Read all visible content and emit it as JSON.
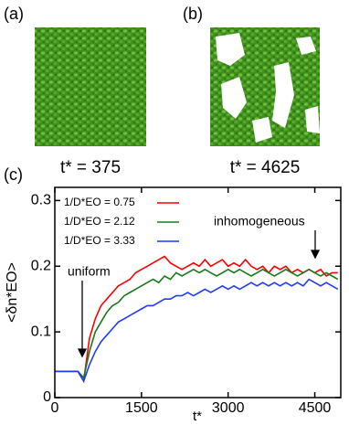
{
  "panels": [
    {
      "label": "(a)",
      "caption": "t* = 375"
    },
    {
      "label": "(b)",
      "caption": "t* = 4625"
    }
  ],
  "chart_data": {
    "type": "line",
    "panel_label": "(c)",
    "x_label": "t*",
    "y_label": "<δn*EO>",
    "annotations": [
      "uniform",
      "inhomogeneous"
    ],
    "xlim": [
      0,
      4950
    ],
    "ylim": [
      0,
      0.32
    ],
    "xticks": [
      0,
      1500,
      3000,
      4500
    ],
    "yticks": [
      0,
      0.1,
      0.2,
      0.3
    ],
    "x": [
      0,
      100,
      200,
      300,
      400,
      500,
      600,
      700,
      800,
      900,
      1000,
      1100,
      1200,
      1300,
      1400,
      1500,
      1600,
      1700,
      1800,
      1900,
      2000,
      2100,
      2200,
      2300,
      2400,
      2500,
      2600,
      2700,
      2800,
      2900,
      3000,
      3100,
      3200,
      3300,
      3400,
      3500,
      3600,
      3700,
      3800,
      3900,
      4000,
      4100,
      4200,
      4300,
      4400,
      4500,
      4600,
      4700,
      4800,
      4900
    ],
    "series": [
      {
        "name": "1/D*EO = 0.75",
        "color": "#ff0000",
        "values": [
          0.04,
          0.04,
          0.04,
          0.04,
          0.04,
          0.025,
          0.09,
          0.12,
          0.14,
          0.15,
          0.16,
          0.17,
          0.175,
          0.18,
          0.19,
          0.195,
          0.2,
          0.205,
          0.21,
          0.215,
          0.205,
          0.2,
          0.195,
          0.2,
          0.205,
          0.2,
          0.21,
          0.2,
          0.205,
          0.21,
          0.2,
          0.205,
          0.2,
          0.21,
          0.2,
          0.195,
          0.2,
          0.19,
          0.2,
          0.195,
          0.2,
          0.19,
          0.195,
          0.19,
          0.195,
          0.19,
          0.195,
          0.185,
          0.19,
          0.19
        ]
      },
      {
        "name": "1/D*EO = 2.12",
        "color": "#1a7a1a",
        "values": [
          0.04,
          0.04,
          0.04,
          0.04,
          0.04,
          0.03,
          0.07,
          0.1,
          0.115,
          0.13,
          0.14,
          0.145,
          0.155,
          0.16,
          0.165,
          0.17,
          0.175,
          0.18,
          0.175,
          0.185,
          0.18,
          0.19,
          0.185,
          0.19,
          0.195,
          0.19,
          0.195,
          0.19,
          0.185,
          0.19,
          0.195,
          0.19,
          0.195,
          0.19,
          0.185,
          0.19,
          0.195,
          0.19,
          0.185,
          0.19,
          0.195,
          0.19,
          0.185,
          0.19,
          0.195,
          0.19,
          0.185,
          0.19,
          0.185,
          0.18
        ]
      },
      {
        "name": "1/D*EO = 3.33",
        "color": "#1e3cff",
        "values": [
          0.04,
          0.04,
          0.04,
          0.04,
          0.04,
          0.025,
          0.05,
          0.07,
          0.085,
          0.095,
          0.105,
          0.115,
          0.12,
          0.125,
          0.13,
          0.135,
          0.14,
          0.14,
          0.145,
          0.15,
          0.15,
          0.155,
          0.155,
          0.16,
          0.155,
          0.16,
          0.165,
          0.16,
          0.165,
          0.17,
          0.165,
          0.17,
          0.165,
          0.17,
          0.175,
          0.17,
          0.175,
          0.17,
          0.175,
          0.17,
          0.175,
          0.17,
          0.175,
          0.17,
          0.18,
          0.175,
          0.17,
          0.175,
          0.17,
          0.165
        ]
      }
    ]
  }
}
